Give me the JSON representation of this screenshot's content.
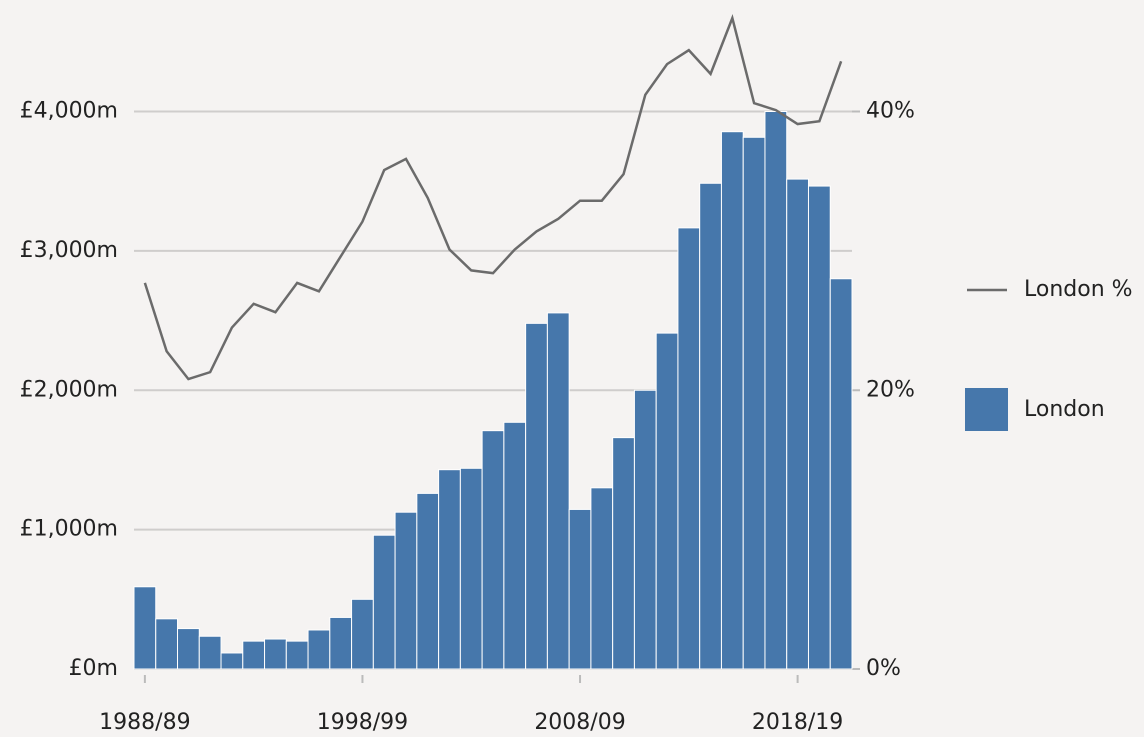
{
  "chart_data": {
    "type": "bar",
    "categories": [
      "1988/89",
      null,
      null,
      null,
      null,
      null,
      null,
      null,
      null,
      null,
      "1998/99",
      null,
      null,
      null,
      null,
      null,
      null,
      null,
      null,
      null,
      "2008/09",
      null,
      null,
      null,
      null,
      null,
      null,
      null,
      null,
      null,
      "2018/19",
      null,
      null
    ],
    "series": [
      {
        "name": "London",
        "type": "bar",
        "color": "#4677ab",
        "values": [
          590,
          360,
          290,
          235,
          115,
          200,
          215,
          200,
          280,
          370,
          500,
          960,
          1125,
          1260,
          1430,
          1440,
          1710,
          1770,
          2480,
          2555,
          1145,
          1300,
          1660,
          2000,
          2410,
          3165,
          3485,
          3855,
          3815,
          4000,
          3515,
          3465,
          2800
        ]
      },
      {
        "name": "London %",
        "type": "line",
        "axis": "y2",
        "color": "#6b6b6b",
        "values": [
          27.7,
          22.8,
          20.8,
          21.3,
          24.5,
          26.2,
          25.6,
          27.7,
          27.1,
          29.6,
          32.1,
          35.8,
          36.6,
          33.8,
          30.1,
          28.6,
          28.4,
          30.1,
          31.4,
          32.3,
          33.6,
          33.6,
          35.5,
          41.2,
          43.4,
          44.4,
          42.7,
          46.7,
          40.6,
          40.1,
          39.1,
          39.3,
          43.6
        ]
      }
    ],
    "ylim": [
      0,
      4800
    ],
    "yticks": [
      {
        "value": 0,
        "label": "£0m"
      },
      {
        "value": 1000,
        "label": "£1,000m"
      },
      {
        "value": 2000,
        "label": "£2,000m"
      },
      {
        "value": 3000,
        "label": "£3,000m"
      },
      {
        "value": 4000,
        "label": "£4,000m"
      }
    ],
    "y2lim": [
      0,
      48
    ],
    "y2ticks": [
      {
        "value": 0,
        "label": "0%"
      },
      {
        "value": 20,
        "label": "20%"
      },
      {
        "value": 40,
        "label": "40%"
      }
    ],
    "grid": true
  }
}
